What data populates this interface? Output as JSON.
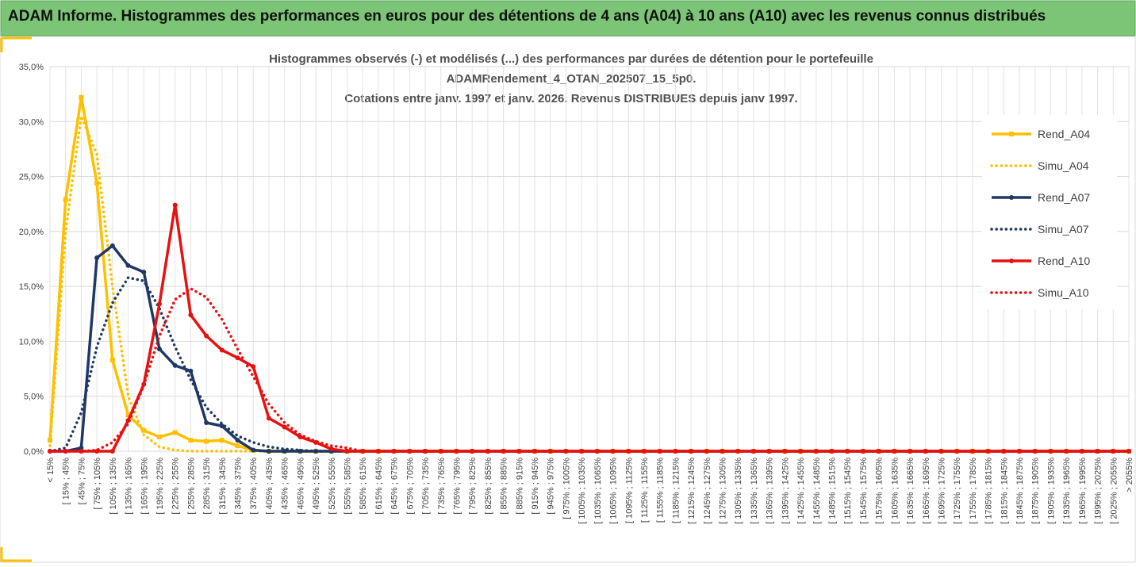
{
  "header": {
    "title": "ADAM Informe. Histogrammes des performances en euros pour des détentions de 4 ans (A04) à 10 ans (A10) avec les revenus connus distribués"
  },
  "chart_data": {
    "type": "line",
    "title": [
      "Histogrammes observés (-) et modélisés (...) des performances par durées de détention pour le portefeuille",
      "ADAMRendement_4_OTAN_202507_15_5p0.",
      "Cotations entre janv. 1997 et janv. 2026. Revenus DISTRIBUES depuis janv 1997."
    ],
    "categories": [
      "< 15%",
      "[ 15% ; 45%",
      "[ 45% ; 75%",
      "[ 75% ; 105%",
      "[ 105% ; 135%",
      "[ 135% ; 165%",
      "[ 165% ; 195%",
      "[ 195% ; 225%",
      "[ 225% ; 255%",
      "[ 255% ; 285%",
      "[ 285% ; 315%",
      "[ 315% ; 345%",
      "[ 345% ; 375%",
      "[ 375% ; 405%",
      "[ 405% ; 435%",
      "[ 435% ; 465%",
      "[ 465% ; 495%",
      "[ 495% ; 525%",
      "[ 525% ; 555%",
      "[ 555% ; 585%",
      "[ 585% ; 615%",
      "[ 615% ; 645%",
      "[ 645% ; 675%",
      "[ 675% ; 705%",
      "[ 705% ; 735%",
      "[ 735% ; 765%",
      "[ 765% ; 795%",
      "[ 795% ; 825%",
      "[ 825% ; 855%",
      "[ 855% ; 885%",
      "[ 885% ; 915%",
      "[ 915% ; 945%",
      "[ 945% ; 975%",
      "[ 975% ; 1005%",
      "[ 1005% ; 1035%",
      "[ 1035% ; 1065%",
      "[ 1065% ; 1095%",
      "[ 1095% ; 1125%",
      "[ 1125% ; 1155%",
      "[ 1155% ; 1185%",
      "[ 1185% ; 1215%",
      "[ 1215% ; 1245%",
      "[ 1245% ; 1275%",
      "[ 1275% ; 1305%",
      "[ 1305% ; 1335%",
      "[ 1335% ; 1365%",
      "[ 1365% ; 1395%",
      "[ 1395% ; 1425%",
      "[ 1425% ; 1455%",
      "[ 1455% ; 1485%",
      "[ 1485% ; 1515%",
      "[ 1515% ; 1545%",
      "[ 1545% ; 1575%",
      "[ 1575% ; 1605%",
      "[ 1605% ; 1635%",
      "[ 1635% ; 1665%",
      "[ 1665% ; 1695%",
      "[ 1695% ; 1725%",
      "[ 1725% ; 1755%",
      "[ 1755% ; 1785%",
      "[ 1785% ; 1815%",
      "[ 1815% ; 1845%",
      "[ 1845% ; 1875%",
      "[ 1875% ; 1905%",
      "[ 1905% ; 1935%",
      "[ 1935% ; 1965%",
      "[ 1965% ; 1995%",
      "[ 1995% ; 2025%",
      "[ 2025% ; 2055%",
      "> 2055%"
    ],
    "series": [
      {
        "name": "Rend_A04",
        "color": "#ffc000",
        "style": "solid",
        "marker": "square",
        "values": [
          1.0,
          22.9,
          32.2,
          24.4,
          8.3,
          3.3,
          1.9,
          1.3,
          1.7,
          1.0,
          0.9,
          1.0,
          0.5,
          0.1,
          0,
          0,
          0,
          0,
          0,
          0,
          0,
          0,
          0,
          0,
          0,
          0,
          0,
          0,
          0,
          0,
          0,
          0,
          0,
          0,
          0,
          0,
          0,
          0,
          0,
          0,
          0,
          0,
          0,
          0,
          0,
          0,
          0,
          0,
          0,
          0,
          0,
          0,
          0,
          0,
          0,
          0,
          0,
          0,
          0,
          0,
          0,
          0,
          0,
          0,
          0,
          0,
          0,
          0,
          0,
          0
        ]
      },
      {
        "name": "Simu_A04",
        "color": "#ffc000",
        "style": "dotted",
        "marker": null,
        "values": [
          0.5,
          20,
          30.5,
          27,
          15,
          5,
          1.5,
          0.4,
          0.1,
          0,
          0,
          0,
          0,
          0,
          0,
          0,
          0,
          0,
          0,
          0,
          0,
          0,
          0,
          0,
          0,
          0,
          0,
          0,
          0,
          0,
          0,
          0,
          0,
          0,
          0,
          0,
          0,
          0,
          0,
          0,
          0,
          0,
          0,
          0,
          0,
          0,
          0,
          0,
          0,
          0,
          0,
          0,
          0,
          0,
          0,
          0,
          0,
          0,
          0,
          0,
          0,
          0,
          0,
          0,
          0,
          0,
          0,
          0,
          0,
          0
        ]
      },
      {
        "name": "Rend_A07",
        "color": "#1f3864",
        "style": "solid",
        "marker": "circle",
        "values": [
          0,
          0,
          0.3,
          17.6,
          18.7,
          16.9,
          16.3,
          9.3,
          7.8,
          7.3,
          2.6,
          2.3,
          1.0,
          0.1,
          0,
          0,
          0,
          0,
          0,
          0,
          0,
          0,
          0,
          0,
          0,
          0,
          0,
          0,
          0,
          0,
          0,
          0,
          0,
          0,
          0,
          0,
          0,
          0,
          0,
          0,
          0,
          0,
          0,
          0,
          0,
          0,
          0,
          0,
          0,
          0,
          0,
          0,
          0,
          0,
          0,
          0,
          0,
          0,
          0,
          0,
          0,
          0,
          0,
          0,
          0,
          0,
          0,
          0,
          0,
          0
        ]
      },
      {
        "name": "Simu_A07",
        "color": "#1f3864",
        "style": "dotted",
        "marker": null,
        "values": [
          0,
          0.3,
          3.5,
          9.5,
          13.5,
          15.8,
          15.5,
          13,
          9.5,
          6.5,
          4,
          2.5,
          1.4,
          0.8,
          0.4,
          0.2,
          0.1,
          0,
          0,
          0,
          0,
          0,
          0,
          0,
          0,
          0,
          0,
          0,
          0,
          0,
          0,
          0,
          0,
          0,
          0,
          0,
          0,
          0,
          0,
          0,
          0,
          0,
          0,
          0,
          0,
          0,
          0,
          0,
          0,
          0,
          0,
          0,
          0,
          0,
          0,
          0,
          0,
          0,
          0,
          0,
          0,
          0,
          0,
          0,
          0,
          0,
          0,
          0,
          0,
          0
        ]
      },
      {
        "name": "Rend_A10",
        "color": "#e81010",
        "style": "solid",
        "marker": "circle",
        "values": [
          0,
          0,
          0,
          0,
          0,
          2.8,
          6.1,
          13.4,
          22.4,
          12.4,
          10.5,
          9.2,
          8.5,
          7.7,
          3.0,
          2.2,
          1.3,
          0.8,
          0.2,
          0,
          0,
          0,
          0,
          0,
          0,
          0,
          0,
          0,
          0,
          0,
          0,
          0,
          0,
          0,
          0,
          0,
          0,
          0,
          0,
          0,
          0,
          0,
          0,
          0,
          0,
          0,
          0,
          0,
          0,
          0,
          0,
          0,
          0,
          0,
          0,
          0,
          0,
          0,
          0,
          0,
          0,
          0,
          0,
          0,
          0,
          0,
          0,
          0,
          0,
          0
        ]
      },
      {
        "name": "Simu_A10",
        "color": "#e81010",
        "style": "dotted",
        "marker": null,
        "values": [
          0,
          0,
          0,
          0.1,
          0.8,
          2.5,
          6,
          10.5,
          13.8,
          14.8,
          14,
          12,
          9.3,
          6.8,
          4.3,
          2.6,
          1.5,
          0.9,
          0.5,
          0.3,
          0,
          0,
          0,
          0,
          0,
          0,
          0,
          0,
          0,
          0,
          0,
          0,
          0,
          0,
          0,
          0,
          0,
          0,
          0,
          0,
          0,
          0,
          0,
          0,
          0,
          0,
          0,
          0,
          0,
          0,
          0,
          0,
          0,
          0,
          0,
          0,
          0,
          0,
          0,
          0,
          0,
          0,
          0,
          0,
          0,
          0,
          0,
          0,
          0,
          0
        ]
      }
    ],
    "ylim": [
      0,
      35
    ],
    "yticks": [
      {
        "value": 0,
        "label": "0,0%"
      },
      {
        "value": 5,
        "label": "5,0%"
      },
      {
        "value": 10,
        "label": "10,0%"
      },
      {
        "value": 15,
        "label": "15,0%"
      },
      {
        "value": 20,
        "label": "20,0%"
      },
      {
        "value": 25,
        "label": "25,0%"
      },
      {
        "value": 30,
        "label": "30,0%"
      },
      {
        "value": 35,
        "label": "35,0%"
      }
    ],
    "grid": true,
    "legend": "right"
  }
}
